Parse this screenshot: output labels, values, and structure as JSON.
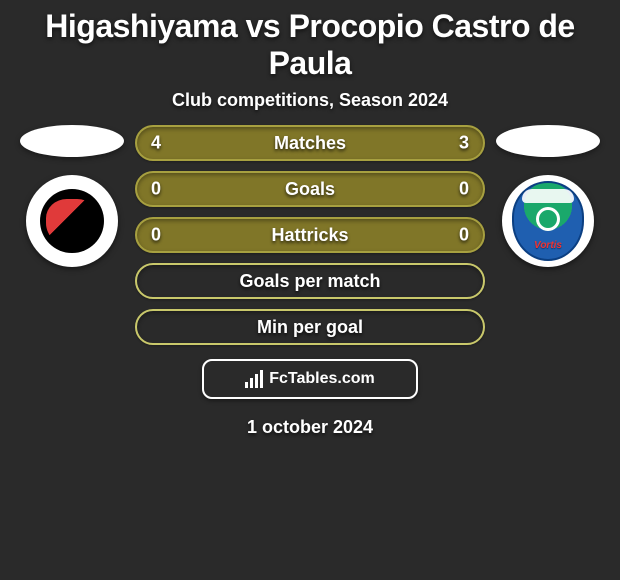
{
  "title": "Higashiyama vs Procopio Castro de Paula",
  "subtitle": "Club competitions, Season 2024",
  "date": "1 october 2024",
  "brand": "FcTables.com",
  "colors": {
    "pill_bg": "#807628",
    "pill_border": "#a7a040",
    "empty_border": "#c9c86b",
    "background": "#2a2a2a",
    "text": "#ffffff"
  },
  "rows": [
    {
      "label": "Matches",
      "left": "4",
      "right": "3",
      "style": "filled"
    },
    {
      "label": "Goals",
      "left": "0",
      "right": "0",
      "style": "filled"
    },
    {
      "label": "Hattricks",
      "left": "0",
      "right": "0",
      "style": "filled"
    },
    {
      "label": "Goals per match",
      "left": "",
      "right": "",
      "style": "outline"
    },
    {
      "label": "Min per goal",
      "left": "",
      "right": "",
      "style": "outline"
    }
  ],
  "badges": {
    "left": {
      "name": "roasso-kumamoto-badge"
    },
    "right": {
      "name": "tokushima-vortis-badge",
      "word": "Vortis"
    }
  }
}
